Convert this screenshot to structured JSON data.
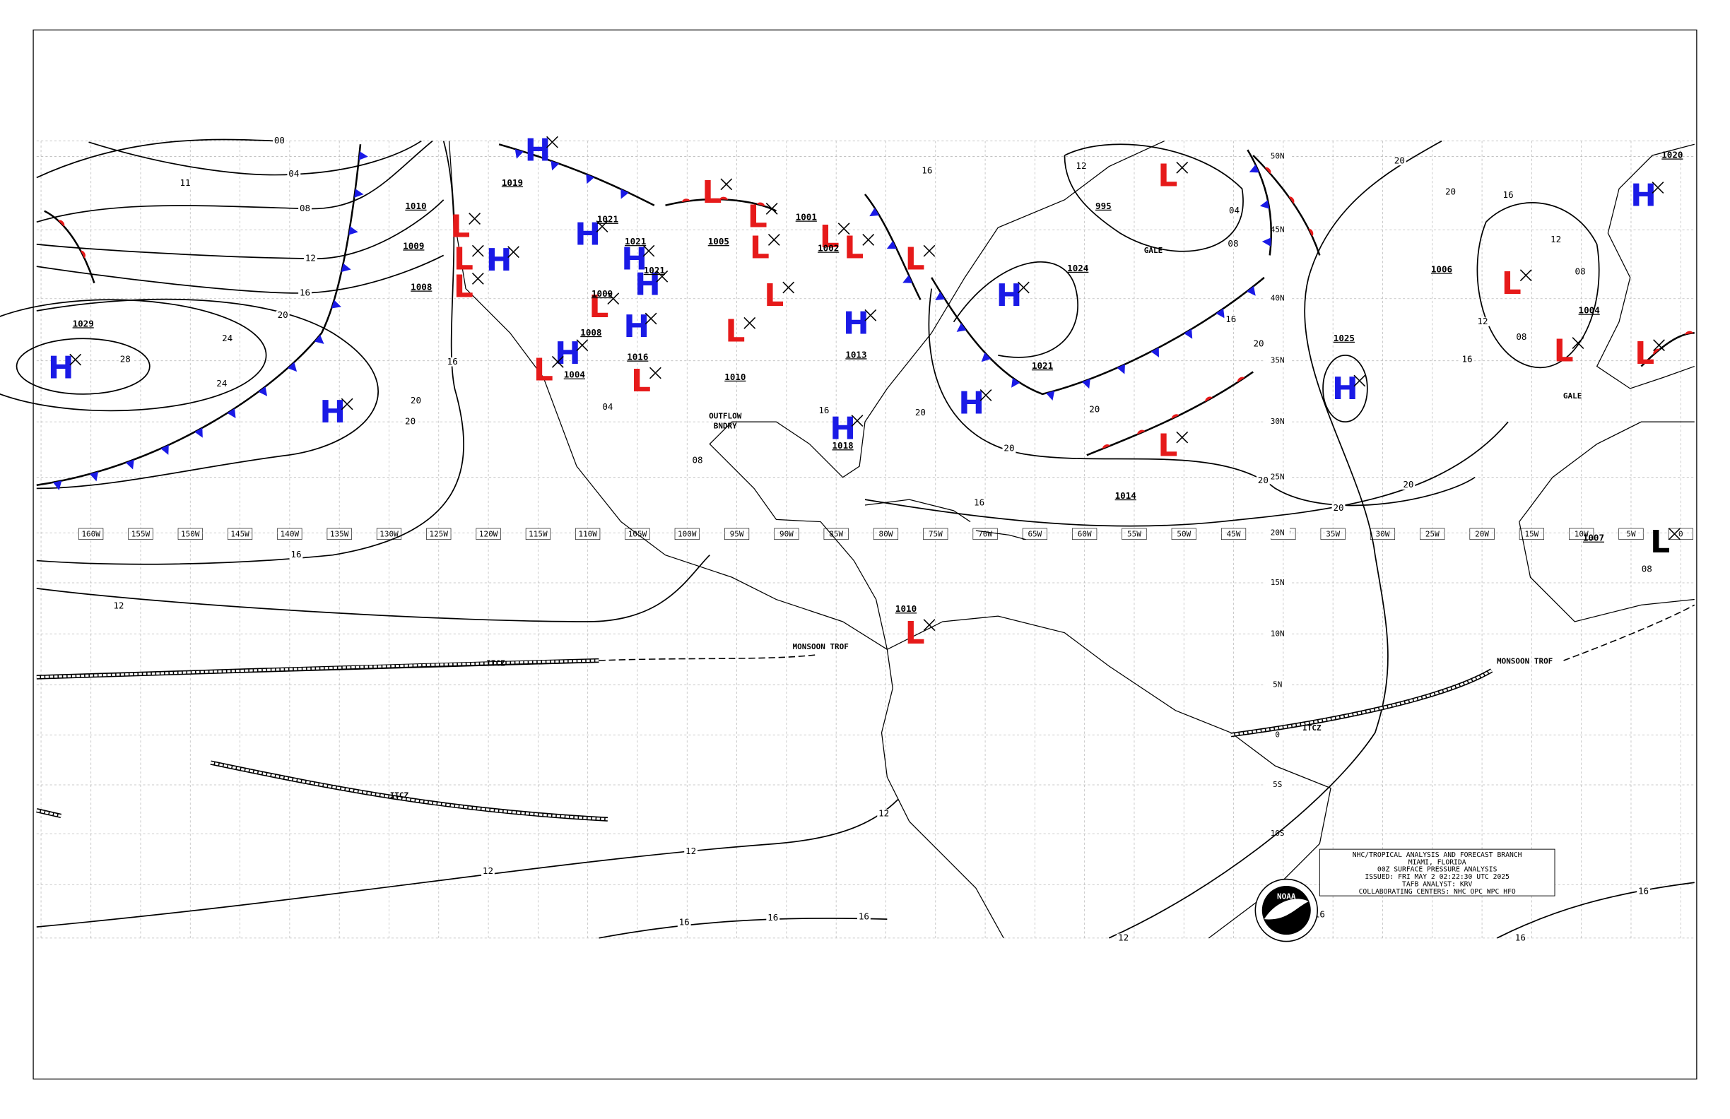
{
  "map": {
    "colors": {
      "H": "#1a1ae6",
      "L": "#e61a1a",
      "cold": "#1a1ae6",
      "warm": "#e61a1a"
    },
    "longitudes": [
      "160W",
      "155W",
      "150W",
      "145W",
      "140W",
      "135W",
      "130W",
      "125W",
      "120W",
      "115W",
      "110W",
      "105W",
      "100W",
      "95W",
      "90W",
      "85W",
      "80W",
      "75W",
      "70W",
      "65W",
      "60W",
      "55W",
      "50W",
      "45W",
      "40W",
      "35W",
      "30W",
      "25W",
      "20W",
      "15W",
      "10W",
      "5W",
      "0"
    ],
    "latitudes": [
      "50N",
      "45N",
      "40N",
      "35N",
      "30N",
      "25N",
      "20N",
      "15N",
      "10N",
      "5N",
      "0",
      "5S",
      "10S"
    ],
    "centers": [
      {
        "letter": "H",
        "pressure": "1029"
      },
      {
        "letter": "H"
      },
      {
        "letter": "H",
        "pressure": "1019"
      },
      {
        "letter": "H"
      },
      {
        "letter": "H",
        "pressure": "1021"
      },
      {
        "letter": "H",
        "pressure": "1021"
      },
      {
        "letter": "H",
        "pressure": "1021"
      },
      {
        "letter": "H",
        "pressure": "1016"
      },
      {
        "letter": "H",
        "pressure": "1008"
      },
      {
        "letter": "H",
        "pressure": "1018"
      },
      {
        "letter": "H",
        "pressure": "1013"
      },
      {
        "letter": "H",
        "pressure": "1024"
      },
      {
        "letter": "H",
        "pressure": "1021"
      },
      {
        "letter": "H",
        "pressure": "1025"
      },
      {
        "letter": "H",
        "pressure": "1020"
      },
      {
        "letter": "L",
        "pressure": "1010"
      },
      {
        "letter": "L",
        "pressure": "1009"
      },
      {
        "letter": "L",
        "pressure": "1008"
      },
      {
        "letter": "L",
        "pressure": "1004"
      },
      {
        "letter": "L",
        "pressure": "1009"
      },
      {
        "letter": "L"
      },
      {
        "letter": "L"
      },
      {
        "letter": "L",
        "pressure": "1005"
      },
      {
        "letter": "L"
      },
      {
        "letter": "L",
        "pressure": "1010"
      },
      {
        "letter": "L"
      },
      {
        "letter": "L",
        "pressure": "1001"
      },
      {
        "letter": "L",
        "pressure": "1002"
      },
      {
        "letter": "L"
      },
      {
        "letter": "L",
        "pressure": "995"
      },
      {
        "letter": "L",
        "pressure": "1014"
      },
      {
        "letter": "L",
        "pressure": "1006"
      },
      {
        "letter": "L",
        "pressure": "1004"
      },
      {
        "letter": "L"
      },
      {
        "letter": "L",
        "pressure": "1010"
      },
      {
        "letter": "L",
        "pressure": "1007",
        "color": "#000000"
      }
    ],
    "isobar_labels": [
      "00",
      "04",
      "08",
      "12",
      "16",
      "20",
      "24",
      "28",
      "24",
      "20",
      "20",
      "16",
      "16",
      "12",
      "12",
      "12",
      "16",
      "16",
      "16",
      "11",
      "04",
      "08",
      "12",
      "16",
      "20",
      "20",
      "20",
      "20",
      "16",
      "20",
      "20",
      "20",
      "20",
      "20",
      "16",
      "12",
      "08",
      "12",
      "08",
      "16",
      "08",
      "12",
      "12",
      "16",
      "16",
      "16",
      "16",
      "16",
      "08",
      "04"
    ],
    "annotations": [
      "ITCZ",
      "ITCZ",
      "ITCZ",
      "MONSOON TROF",
      "MONSOON TROF",
      "GALE",
      "GALE",
      "OUTFLOW",
      "BNDRY"
    ],
    "info_box": [
      "NHC/TROPICAL ANALYSIS AND FORECAST BRANCH",
      "MIAMI, FLORIDA",
      "00Z SURFACE PRESSURE ANALYSIS",
      "ISSUED: FRI MAY 2 02:22:30 UTC 2025",
      "TAFB ANALYST: KRV",
      "COLLABORATING CENTERS: NHC OPC WPC HFO"
    ],
    "logo_text": "NOAA"
  }
}
